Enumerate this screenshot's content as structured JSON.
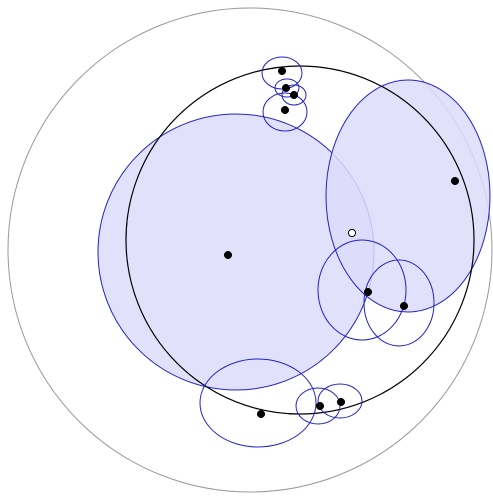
{
  "diagram": {
    "colors": {
      "background": "#ffffff",
      "outer_boundary": "#999999",
      "main_circle": "#000000",
      "blue_stroke": "#2222cc",
      "blue_fill": "#dcdcfa",
      "point_fill": "#000000",
      "hollow_point_fill": "#ffffff"
    },
    "shapes": {
      "outer_boundary": {
        "name": "outer-boundary-circle"
      },
      "main_circle": {
        "name": "main-black-circle"
      },
      "filled_circles": [
        {
          "name": "large-filled-circle-left"
        },
        {
          "name": "filled-ellipse-right"
        }
      ],
      "outline_circles": [
        {
          "name": "small-circle-top-1"
        },
        {
          "name": "small-circle-top-2"
        },
        {
          "name": "small-circle-top-3"
        },
        {
          "name": "small-circle-top-4"
        },
        {
          "name": "mid-circle-right-1"
        },
        {
          "name": "mid-circle-right-2"
        },
        {
          "name": "bottom-ellipse-large"
        },
        {
          "name": "bottom-ellipse-small-1"
        },
        {
          "name": "bottom-ellipse-small-2"
        }
      ],
      "points": [
        {
          "name": "point-top-1",
          "style": "solid"
        },
        {
          "name": "point-top-2",
          "style": "solid"
        },
        {
          "name": "point-top-3",
          "style": "solid"
        },
        {
          "name": "point-top-4",
          "style": "solid"
        },
        {
          "name": "point-center-left",
          "style": "solid"
        },
        {
          "name": "point-right",
          "style": "solid"
        },
        {
          "name": "point-hollow",
          "style": "hollow"
        },
        {
          "name": "point-mid-right-1",
          "style": "solid"
        },
        {
          "name": "point-mid-right-2",
          "style": "solid"
        },
        {
          "name": "point-bottom-1",
          "style": "solid"
        },
        {
          "name": "point-bottom-2",
          "style": "solid"
        },
        {
          "name": "point-bottom-3",
          "style": "solid"
        }
      ]
    }
  }
}
